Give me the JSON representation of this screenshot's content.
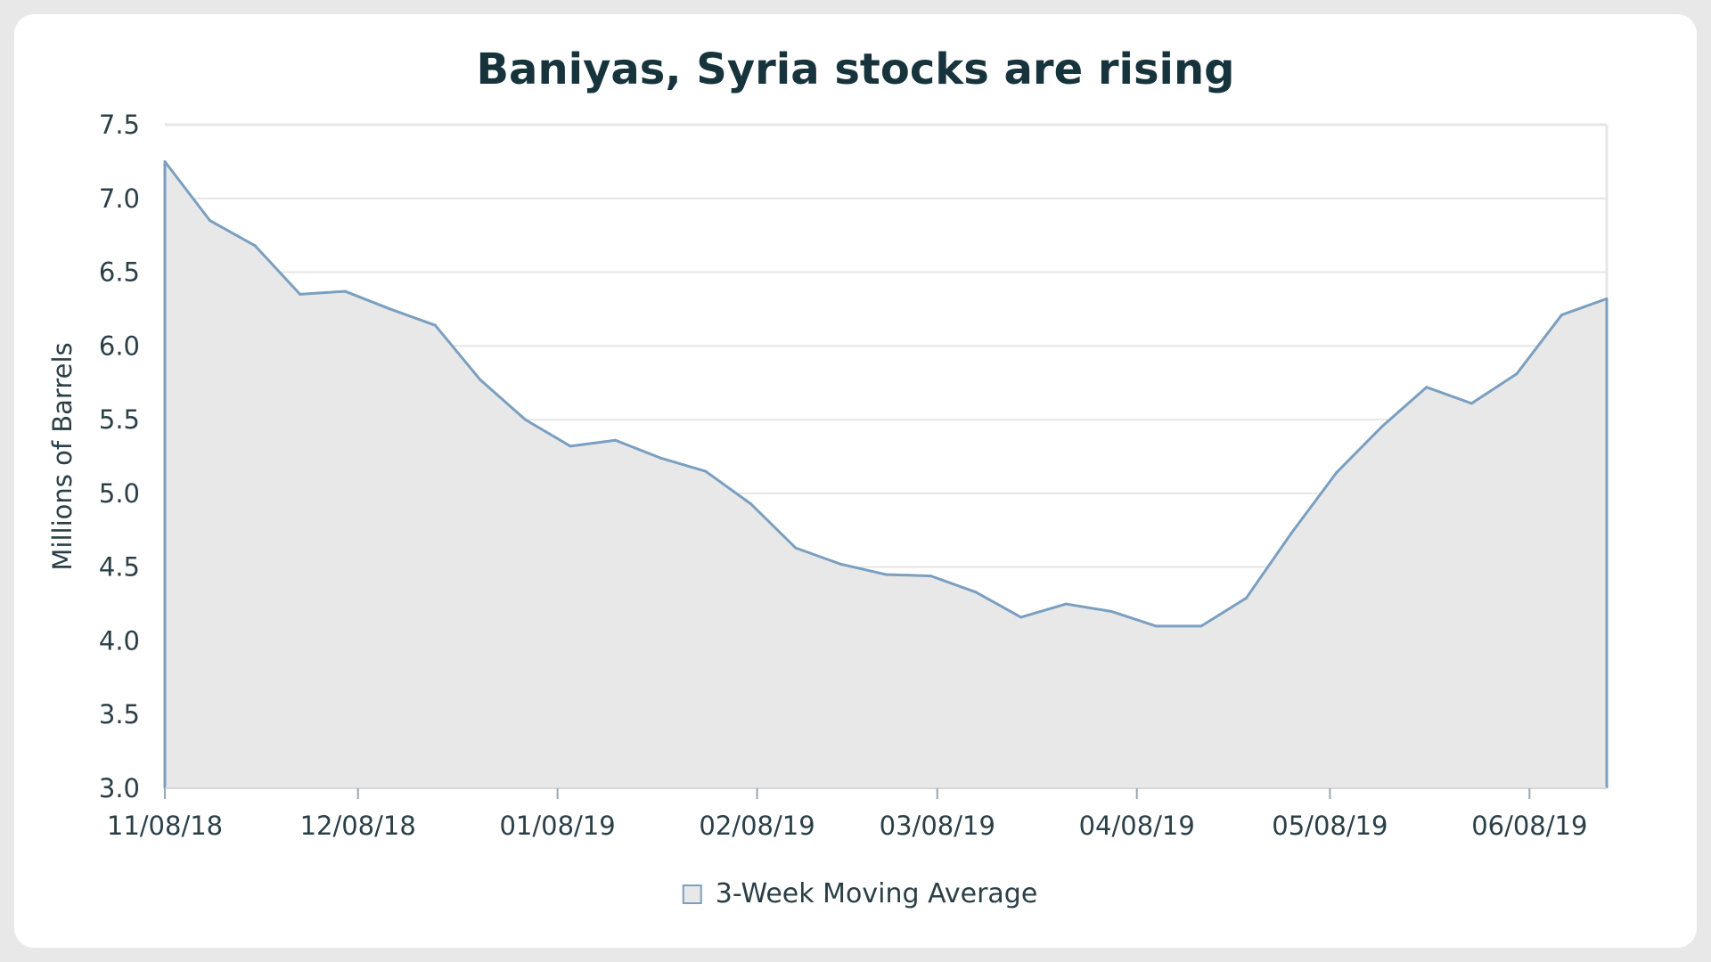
{
  "chart_data": {
    "type": "area",
    "title": "Baniyas, Syria stocks are rising",
    "ylabel": "Millions of Barrels",
    "xlabel": "",
    "ylim": [
      3.0,
      7.5
    ],
    "yticks": [
      "3.0",
      "3.5",
      "4.0",
      "4.5",
      "5.0",
      "5.5",
      "6.0",
      "6.5",
      "7.0",
      "7.5"
    ],
    "xticks": [
      {
        "label": "11/08/18",
        "date": "2018-11-08"
      },
      {
        "label": "12/08/18",
        "date": "2018-12-08"
      },
      {
        "label": "01/08/19",
        "date": "2019-01-08"
      },
      {
        "label": "02/08/19",
        "date": "2019-02-08"
      },
      {
        "label": "03/08/19",
        "date": "2019-03-08"
      },
      {
        "label": "04/08/19",
        "date": "2019-04-08"
      },
      {
        "label": "05/08/19",
        "date": "2019-05-08"
      },
      {
        "label": "06/08/19",
        "date": "2019-06-08"
      }
    ],
    "grid": true,
    "legend_position": "bottom",
    "series": [
      {
        "name": "3-Week Moving Average",
        "line_color": "#7a9fc0",
        "fill_color": "#e8e8e8",
        "x": [
          "2018-11-08",
          "2018-11-15",
          "2018-11-22",
          "2018-11-29",
          "2018-12-06",
          "2018-12-13",
          "2018-12-20",
          "2018-12-27",
          "2019-01-03",
          "2019-01-10",
          "2019-01-17",
          "2019-01-24",
          "2019-01-31",
          "2019-02-07",
          "2019-02-14",
          "2019-02-21",
          "2019-02-28",
          "2019-03-07",
          "2019-03-14",
          "2019-03-21",
          "2019-03-28",
          "2019-04-04",
          "2019-04-11",
          "2019-04-18",
          "2019-04-25",
          "2019-05-02",
          "2019-05-09",
          "2019-05-16",
          "2019-05-23",
          "2019-05-30",
          "2019-06-06",
          "2019-06-13",
          "2019-06-20"
        ],
        "values": [
          7.25,
          6.85,
          6.68,
          6.35,
          6.37,
          6.25,
          6.14,
          5.77,
          5.5,
          5.32,
          5.36,
          5.24,
          5.15,
          4.93,
          4.63,
          4.52,
          4.45,
          4.44,
          4.33,
          4.16,
          4.25,
          4.2,
          4.1,
          4.1,
          4.29,
          4.73,
          5.14,
          5.45,
          5.72,
          5.61,
          5.81,
          6.21,
          6.32
        ]
      }
    ]
  }
}
